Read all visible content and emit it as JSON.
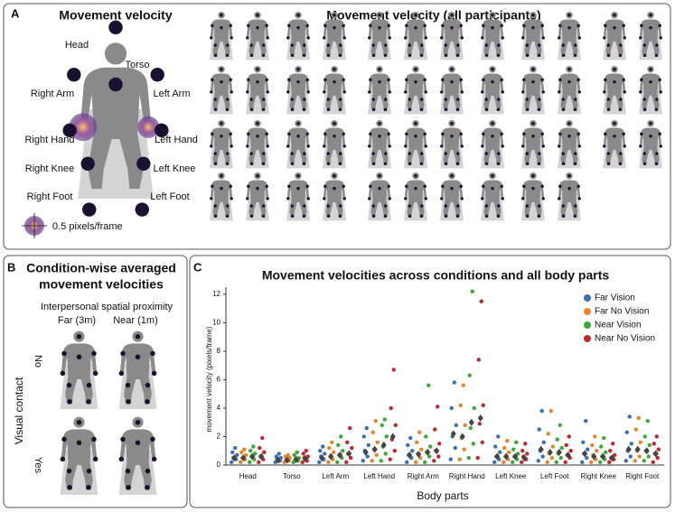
{
  "panel_a": {
    "letter": "A",
    "title": "Movement velocity",
    "labels": [
      "Head",
      "Torso",
      "Right Arm",
      "Left Arm",
      "Right Hand",
      "Left Hand",
      "Right Knee",
      "Left Knee",
      "Right Foot",
      "Left Foot"
    ],
    "scale_label": "0.5 pixels/frame",
    "participants_title": "Movement velocity (all participants)"
  },
  "panel_b": {
    "letter": "B",
    "title_lines": [
      "Condition-wise averaged",
      "movement velocities"
    ],
    "column_header": "Interpersonal spatial proximity",
    "columns": [
      "Far (3m)",
      "Near (1m)"
    ],
    "row_header": "Visual contact",
    "rows": [
      "No",
      "Yes"
    ]
  },
  "chart_data": {
    "type": "strip",
    "letter": "C",
    "title": "Movement velocities across conditions and all body parts",
    "x_label": "Body parts",
    "y_label": "movement velocity (pixels/frame)",
    "categories": [
      "Head",
      "Torso",
      "Left Arm",
      "Left Hand",
      "Right Arm",
      "Right Hand",
      "Left Knee",
      "Left Foot",
      "Right Knee",
      "Right Foot"
    ],
    "ylim": [
      0,
      12.5
    ],
    "yticks": [
      0,
      2,
      4,
      6,
      8,
      10,
      12
    ],
    "legend": "top-right",
    "series": [
      {
        "name": "Far Vision",
        "color": "#3b6fb6",
        "values": [
          [
            0.2,
            0.4,
            0.5,
            0.7,
            0.9,
            1.2
          ],
          [
            0.2,
            0.3,
            0.4,
            0.5,
            0.6,
            0.8
          ],
          [
            0.2,
            0.4,
            0.6,
            0.8,
            1.0,
            1.3
          ],
          [
            0.3,
            0.6,
            1.0,
            1.4,
            2.0,
            2.6
          ],
          [
            0.2,
            0.5,
            0.7,
            1.0,
            1.4,
            1.9
          ],
          [
            0.4,
            1.2,
            2.0,
            2.8,
            4.0,
            5.8
          ],
          [
            0.2,
            0.4,
            0.6,
            0.9,
            1.3,
            2.0
          ],
          [
            0.3,
            0.6,
            1.0,
            1.6,
            2.5,
            3.8
          ],
          [
            0.2,
            0.5,
            0.8,
            1.1,
            1.6,
            3.1
          ],
          [
            0.3,
            0.6,
            1.0,
            1.5,
            2.3,
            3.4
          ]
        ],
        "medians": [
          0.5,
          0.35,
          0.5,
          0.9,
          0.7,
          2.2,
          0.6,
          1.1,
          0.8,
          1.1
        ]
      },
      {
        "name": "Far No Vision",
        "color": "#e8862c",
        "values": [
          [
            0.2,
            0.4,
            0.5,
            0.7,
            0.9,
            1.1
          ],
          [
            0.2,
            0.3,
            0.4,
            0.5,
            0.6,
            0.7
          ],
          [
            0.2,
            0.4,
            0.6,
            0.9,
            1.2,
            1.6
          ],
          [
            0.3,
            0.7,
            1.1,
            1.6,
            2.3,
            3.1
          ],
          [
            0.2,
            0.5,
            0.8,
            1.1,
            1.6,
            2.3
          ],
          [
            0.4,
            1.1,
            1.9,
            2.8,
            4.2,
            5.6
          ],
          [
            0.2,
            0.4,
            0.6,
            0.9,
            1.2,
            1.7
          ],
          [
            0.2,
            0.5,
            0.8,
            1.3,
            2.2,
            3.8
          ],
          [
            0.2,
            0.4,
            0.7,
            1.0,
            1.4,
            2.0
          ],
          [
            0.3,
            0.6,
            1.0,
            1.6,
            2.5,
            3.3
          ]
        ],
        "medians": [
          0.5,
          0.35,
          0.6,
          1.1,
          0.75,
          2.0,
          0.6,
          0.9,
          0.6,
          1.1
        ]
      },
      {
        "name": "Near Vision",
        "color": "#3ea83a",
        "values": [
          [
            0.2,
            0.4,
            0.6,
            0.8,
            1.0,
            1.3
          ],
          [
            0.2,
            0.3,
            0.4,
            0.5,
            0.7,
            0.9
          ],
          [
            0.2,
            0.5,
            0.7,
            1.0,
            1.4,
            2.0
          ],
          [
            0.3,
            0.8,
            1.3,
            2.0,
            2.8,
            3.2
          ],
          [
            0.2,
            0.6,
            0.9,
            1.3,
            2.0,
            5.6
          ],
          [
            0.5,
            1.5,
            2.6,
            4.0,
            6.3,
            12.2
          ],
          [
            0.2,
            0.4,
            0.6,
            0.8,
            1.1,
            1.6
          ],
          [
            0.2,
            0.5,
            0.8,
            1.2,
            1.8,
            2.8
          ],
          [
            0.2,
            0.4,
            0.6,
            0.9,
            1.3,
            1.9
          ],
          [
            0.3,
            0.6,
            1.0,
            1.4,
            2.0,
            3.1
          ]
        ],
        "medians": [
          0.6,
          0.4,
          0.7,
          1.4,
          0.9,
          3.0,
          0.6,
          0.9,
          0.6,
          1.0
        ]
      },
      {
        "name": "Near No Vision",
        "color": "#c0282d",
        "values": [
          [
            0.2,
            0.4,
            0.6,
            0.9,
            1.2,
            1.9
          ],
          [
            0.2,
            0.3,
            0.5,
            0.6,
            0.8,
            1.0
          ],
          [
            0.2,
            0.5,
            0.8,
            1.2,
            1.6,
            2.6
          ],
          [
            0.4,
            1.0,
            1.8,
            2.8,
            4.0,
            6.7
          ],
          [
            0.3,
            0.6,
            1.0,
            1.5,
            2.5,
            4.1
          ],
          [
            0.5,
            1.6,
            2.9,
            4.2,
            7.4,
            11.5
          ],
          [
            0.2,
            0.4,
            0.6,
            0.8,
            1.0,
            1.5
          ],
          [
            0.2,
            0.5,
            0.7,
            1.0,
            1.4,
            2.0
          ],
          [
            0.2,
            0.4,
            0.5,
            0.7,
            1.0,
            1.5
          ],
          [
            0.2,
            0.5,
            0.8,
            1.1,
            1.5,
            2.0
          ]
        ],
        "medians": [
          0.6,
          0.45,
          0.8,
          2.0,
          1.0,
          3.3,
          0.5,
          0.7,
          0.5,
          0.8
        ]
      }
    ]
  }
}
